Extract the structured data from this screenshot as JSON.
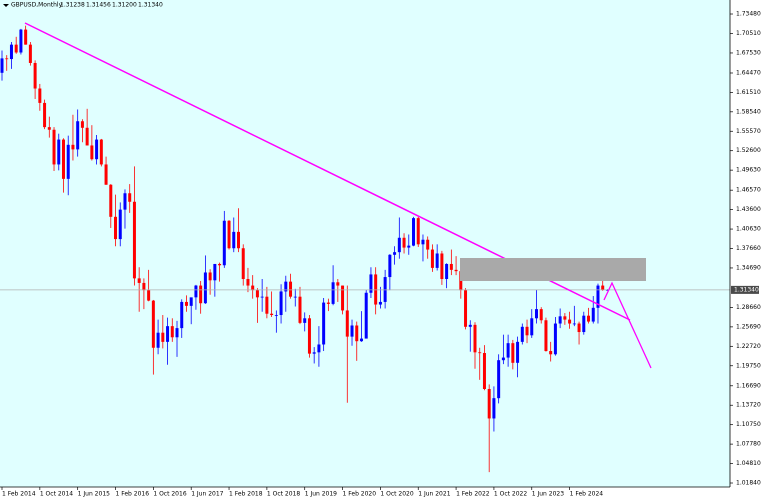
{
  "chart_data": {
    "type": "candlestick",
    "title": "GBPUSD,Monthly",
    "quote": [
      "1.31238",
      "1.31456",
      "1.31200",
      "1.31340"
    ],
    "categories": [
      "1 Feb 2014",
      null,
      null,
      null,
      null,
      null,
      null,
      null,
      "1 Oct 2014",
      null,
      null,
      null,
      null,
      null,
      null,
      null,
      "1 Jun 2015",
      null,
      null,
      null,
      null,
      null,
      null,
      null,
      "1 Feb 2016",
      null,
      null,
      null,
      null,
      null,
      null,
      null,
      "1 Oct 2016",
      null,
      null,
      null,
      null,
      null,
      null,
      null,
      "1 Jun 2017",
      null,
      null,
      null,
      null,
      null,
      null,
      null,
      "1 Feb 2018",
      null,
      null,
      null,
      null,
      null,
      null,
      null,
      "1 Oct 2018",
      null,
      null,
      null,
      null,
      null,
      null,
      null,
      "1 Jun 2019",
      null,
      null,
      null,
      null,
      null,
      null,
      null,
      "1 Feb 2020",
      null,
      null,
      null,
      null,
      null,
      null,
      null,
      "1 Oct 2020",
      null,
      null,
      null,
      null,
      null,
      null,
      null,
      "1 Jun 2021",
      null,
      null,
      null,
      null,
      null,
      null,
      null,
      "1 Feb 2022",
      null,
      null,
      null,
      null,
      null,
      null,
      null,
      "1 Oct 2022",
      null,
      null,
      null,
      null,
      null,
      null,
      null,
      "1 Jun 2023",
      null,
      null,
      null,
      null,
      null,
      null,
      null,
      "1 Feb 2024",
      null,
      null,
      null,
      null,
      null,
      null,
      null,
      null
    ],
    "open": [
      1.645,
      1.667,
      1.666,
      1.688,
      1.676,
      1.711,
      1.688,
      1.66,
      1.621,
      1.599,
      1.562,
      1.558,
      1.505,
      1.543,
      1.483,
      1.535,
      1.528,
      1.571,
      1.561,
      1.534,
      1.513,
      1.543,
      1.505,
      1.474,
      1.425,
      1.391,
      1.436,
      1.461,
      1.448,
      1.331,
      1.324,
      1.313,
      1.297,
      1.225,
      1.248,
      1.234,
      1.258,
      1.241,
      1.255,
      1.295,
      1.289,
      1.302,
      1.32,
      1.293,
      1.34,
      1.328,
      1.353,
      1.351,
      1.419,
      1.377,
      1.402,
      1.377,
      1.33,
      1.32,
      1.313,
      1.302,
      1.303,
      1.277,
      1.275,
      1.275,
      1.311,
      1.326,
      1.303,
      1.303,
      1.263,
      1.27,
      1.216,
      1.218,
      1.23,
      1.294,
      1.292,
      1.325,
      1.32,
      1.282,
      1.242,
      1.259,
      1.235,
      1.239,
      1.309,
      1.337,
      1.291,
      1.295,
      1.333,
      1.367,
      1.371,
      1.393,
      1.378,
      1.381,
      1.423,
      1.383,
      1.39,
      1.375,
      1.347,
      1.369,
      1.33,
      1.353,
      1.344,
      1.342,
      1.313,
      1.257,
      1.26,
      1.218,
      1.217,
      1.162,
      1.117,
      1.148,
      1.206,
      1.21,
      1.232,
      1.202,
      1.234,
      1.257,
      1.244,
      1.27,
      1.284,
      1.267,
      1.22,
      1.215,
      1.262,
      1.273,
      1.268,
      1.262,
      1.262,
      1.249,
      1.274,
      1.265,
      1.286,
      1.32,
      1.31238
    ],
    "high": [
      1.679,
      1.672,
      1.692,
      1.7,
      1.712,
      1.717,
      1.692,
      1.664,
      1.628,
      1.604,
      1.578,
      1.562,
      1.552,
      1.545,
      1.549,
      1.581,
      1.589,
      1.574,
      1.59,
      1.565,
      1.55,
      1.544,
      1.517,
      1.475,
      1.459,
      1.447,
      1.467,
      1.475,
      1.502,
      1.348,
      1.331,
      1.344,
      1.298,
      1.268,
      1.275,
      1.271,
      1.27,
      1.266,
      1.299,
      1.305,
      1.301,
      1.321,
      1.327,
      1.366,
      1.345,
      1.353,
      1.355,
      1.434,
      1.42,
      1.424,
      1.438,
      1.383,
      1.347,
      1.336,
      1.316,
      1.33,
      1.318,
      1.311,
      1.282,
      1.322,
      1.335,
      1.338,
      1.315,
      1.318,
      1.279,
      1.275,
      1.226,
      1.258,
      1.301,
      1.3,
      1.351,
      1.33,
      1.32,
      1.32,
      1.268,
      1.265,
      1.281,
      1.314,
      1.348,
      1.348,
      1.318,
      1.344,
      1.368,
      1.38,
      1.424,
      1.4,
      1.398,
      1.425,
      1.425,
      1.398,
      1.395,
      1.383,
      1.383,
      1.373,
      1.354,
      1.375,
      1.365,
      1.344,
      1.316,
      1.267,
      1.264,
      1.225,
      1.229,
      1.169,
      1.166,
      1.215,
      1.245,
      1.245,
      1.237,
      1.242,
      1.262,
      1.268,
      1.284,
      1.314,
      1.287,
      1.271,
      1.234,
      1.272,
      1.285,
      1.278,
      1.28,
      1.289,
      1.265,
      1.28,
      1.286,
      1.304,
      1.323,
      1.3456,
      1.31456
    ],
    "low": [
      1.633,
      1.648,
      1.651,
      1.674,
      1.673,
      1.688,
      1.656,
      1.605,
      1.587,
      1.559,
      1.546,
      1.495,
      1.496,
      1.462,
      1.458,
      1.511,
      1.517,
      1.539,
      1.534,
      1.511,
      1.505,
      1.502,
      1.474,
      1.408,
      1.38,
      1.38,
      1.407,
      1.431,
      1.32,
      1.28,
      1.284,
      1.296,
      1.184,
      1.215,
      1.224,
      1.199,
      1.234,
      1.211,
      1.24,
      1.28,
      1.261,
      1.283,
      1.277,
      1.292,
      1.306,
      1.303,
      1.326,
      1.347,
      1.375,
      1.371,
      1.371,
      1.32,
      1.31,
      1.3,
      1.263,
      1.28,
      1.27,
      1.272,
      1.248,
      1.262,
      1.28,
      1.3,
      1.288,
      1.261,
      1.25,
      1.21,
      1.201,
      1.196,
      1.22,
      1.281,
      1.29,
      1.295,
      1.276,
      1.141,
      1.228,
      1.205,
      1.234,
      1.243,
      1.301,
      1.276,
      1.285,
      1.285,
      1.313,
      1.352,
      1.361,
      1.369,
      1.367,
      1.38,
      1.379,
      1.357,
      1.361,
      1.341,
      1.343,
      1.321,
      1.316,
      1.336,
      1.336,
      1.3,
      1.253,
      1.219,
      1.193,
      1.176,
      1.16,
      1.035,
      1.097,
      1.14,
      1.2,
      1.196,
      1.192,
      1.18,
      1.23,
      1.232,
      1.24,
      1.262,
      1.262,
      1.219,
      1.204,
      1.213,
      1.255,
      1.26,
      1.254,
      1.258,
      1.23,
      1.245,
      1.262,
      1.262,
      1.262,
      1.312,
      1.312
    ],
    "close": [
      1.667,
      1.666,
      1.688,
      1.676,
      1.711,
      1.688,
      1.66,
      1.621,
      1.599,
      1.562,
      1.558,
      1.505,
      1.543,
      1.483,
      1.535,
      1.528,
      1.571,
      1.561,
      1.534,
      1.513,
      1.543,
      1.505,
      1.474,
      1.425,
      1.391,
      1.436,
      1.461,
      1.448,
      1.331,
      1.324,
      1.313,
      1.297,
      1.225,
      1.248,
      1.234,
      1.258,
      1.241,
      1.255,
      1.295,
      1.289,
      1.302,
      1.32,
      1.293,
      1.34,
      1.328,
      1.353,
      1.351,
      1.419,
      1.377,
      1.402,
      1.377,
      1.33,
      1.32,
      1.313,
      1.302,
      1.303,
      1.277,
      1.275,
      1.275,
      1.311,
      1.326,
      1.303,
      1.303,
      1.263,
      1.27,
      1.216,
      1.218,
      1.23,
      1.294,
      1.292,
      1.325,
      1.32,
      1.282,
      1.242,
      1.259,
      1.235,
      1.239,
      1.309,
      1.337,
      1.291,
      1.295,
      1.333,
      1.367,
      1.371,
      1.393,
      1.378,
      1.381,
      1.423,
      1.383,
      1.39,
      1.375,
      1.347,
      1.369,
      1.33,
      1.353,
      1.344,
      1.342,
      1.313,
      1.257,
      1.26,
      1.218,
      1.217,
      1.162,
      1.117,
      1.148,
      1.206,
      1.21,
      1.232,
      1.202,
      1.234,
      1.257,
      1.244,
      1.27,
      1.284,
      1.267,
      1.22,
      1.215,
      1.262,
      1.273,
      1.268,
      1.262,
      1.262,
      1.249,
      1.274,
      1.265,
      1.286,
      1.32,
      1.3134,
      1.3134
    ],
    "up_color": "#0000ff",
    "down_color": "#ff0000",
    "background": "#e0ffff",
    "ylim": [
      1.0123,
      1.7562
    ],
    "yticks": [
      {
        "value": 1.7348,
        "label": "1.73480"
      },
      {
        "value": 1.7051,
        "label": "1.70510"
      },
      {
        "value": 1.6753,
        "label": "1.67530"
      },
      {
        "value": 1.6447,
        "label": "1.64470"
      },
      {
        "value": 1.6151,
        "label": "1.61510"
      },
      {
        "value": 1.5854,
        "label": "1.58540"
      },
      {
        "value": 1.5557,
        "label": "1.55570"
      },
      {
        "value": 1.526,
        "label": "1.52600"
      },
      {
        "value": 1.4963,
        "label": "1.49630"
      },
      {
        "value": 1.4657,
        "label": "1.46570"
      },
      {
        "value": 1.436,
        "label": "1.43600"
      },
      {
        "value": 1.4063,
        "label": "1.40630"
      },
      {
        "value": 1.3766,
        "label": "1.37660"
      },
      {
        "value": 1.3469,
        "label": "1.34690"
      },
      {
        "value": 1.2866,
        "label": "1.28660"
      },
      {
        "value": 1.2569,
        "label": "1.25690"
      },
      {
        "value": 1.2272,
        "label": "1.22720"
      },
      {
        "value": 1.1975,
        "label": "1.19750"
      },
      {
        "value": 1.1669,
        "label": "1.16690"
      },
      {
        "value": 1.1372,
        "label": "1.13720"
      },
      {
        "value": 1.1075,
        "label": "1.10750"
      },
      {
        "value": 1.0778,
        "label": "1.07780"
      },
      {
        "value": 1.0481,
        "label": "1.04810"
      },
      {
        "value": 1.0184,
        "label": "1.01840"
      }
    ],
    "current_price": {
      "value": 1.3134,
      "label": "1.31340"
    }
  }
}
